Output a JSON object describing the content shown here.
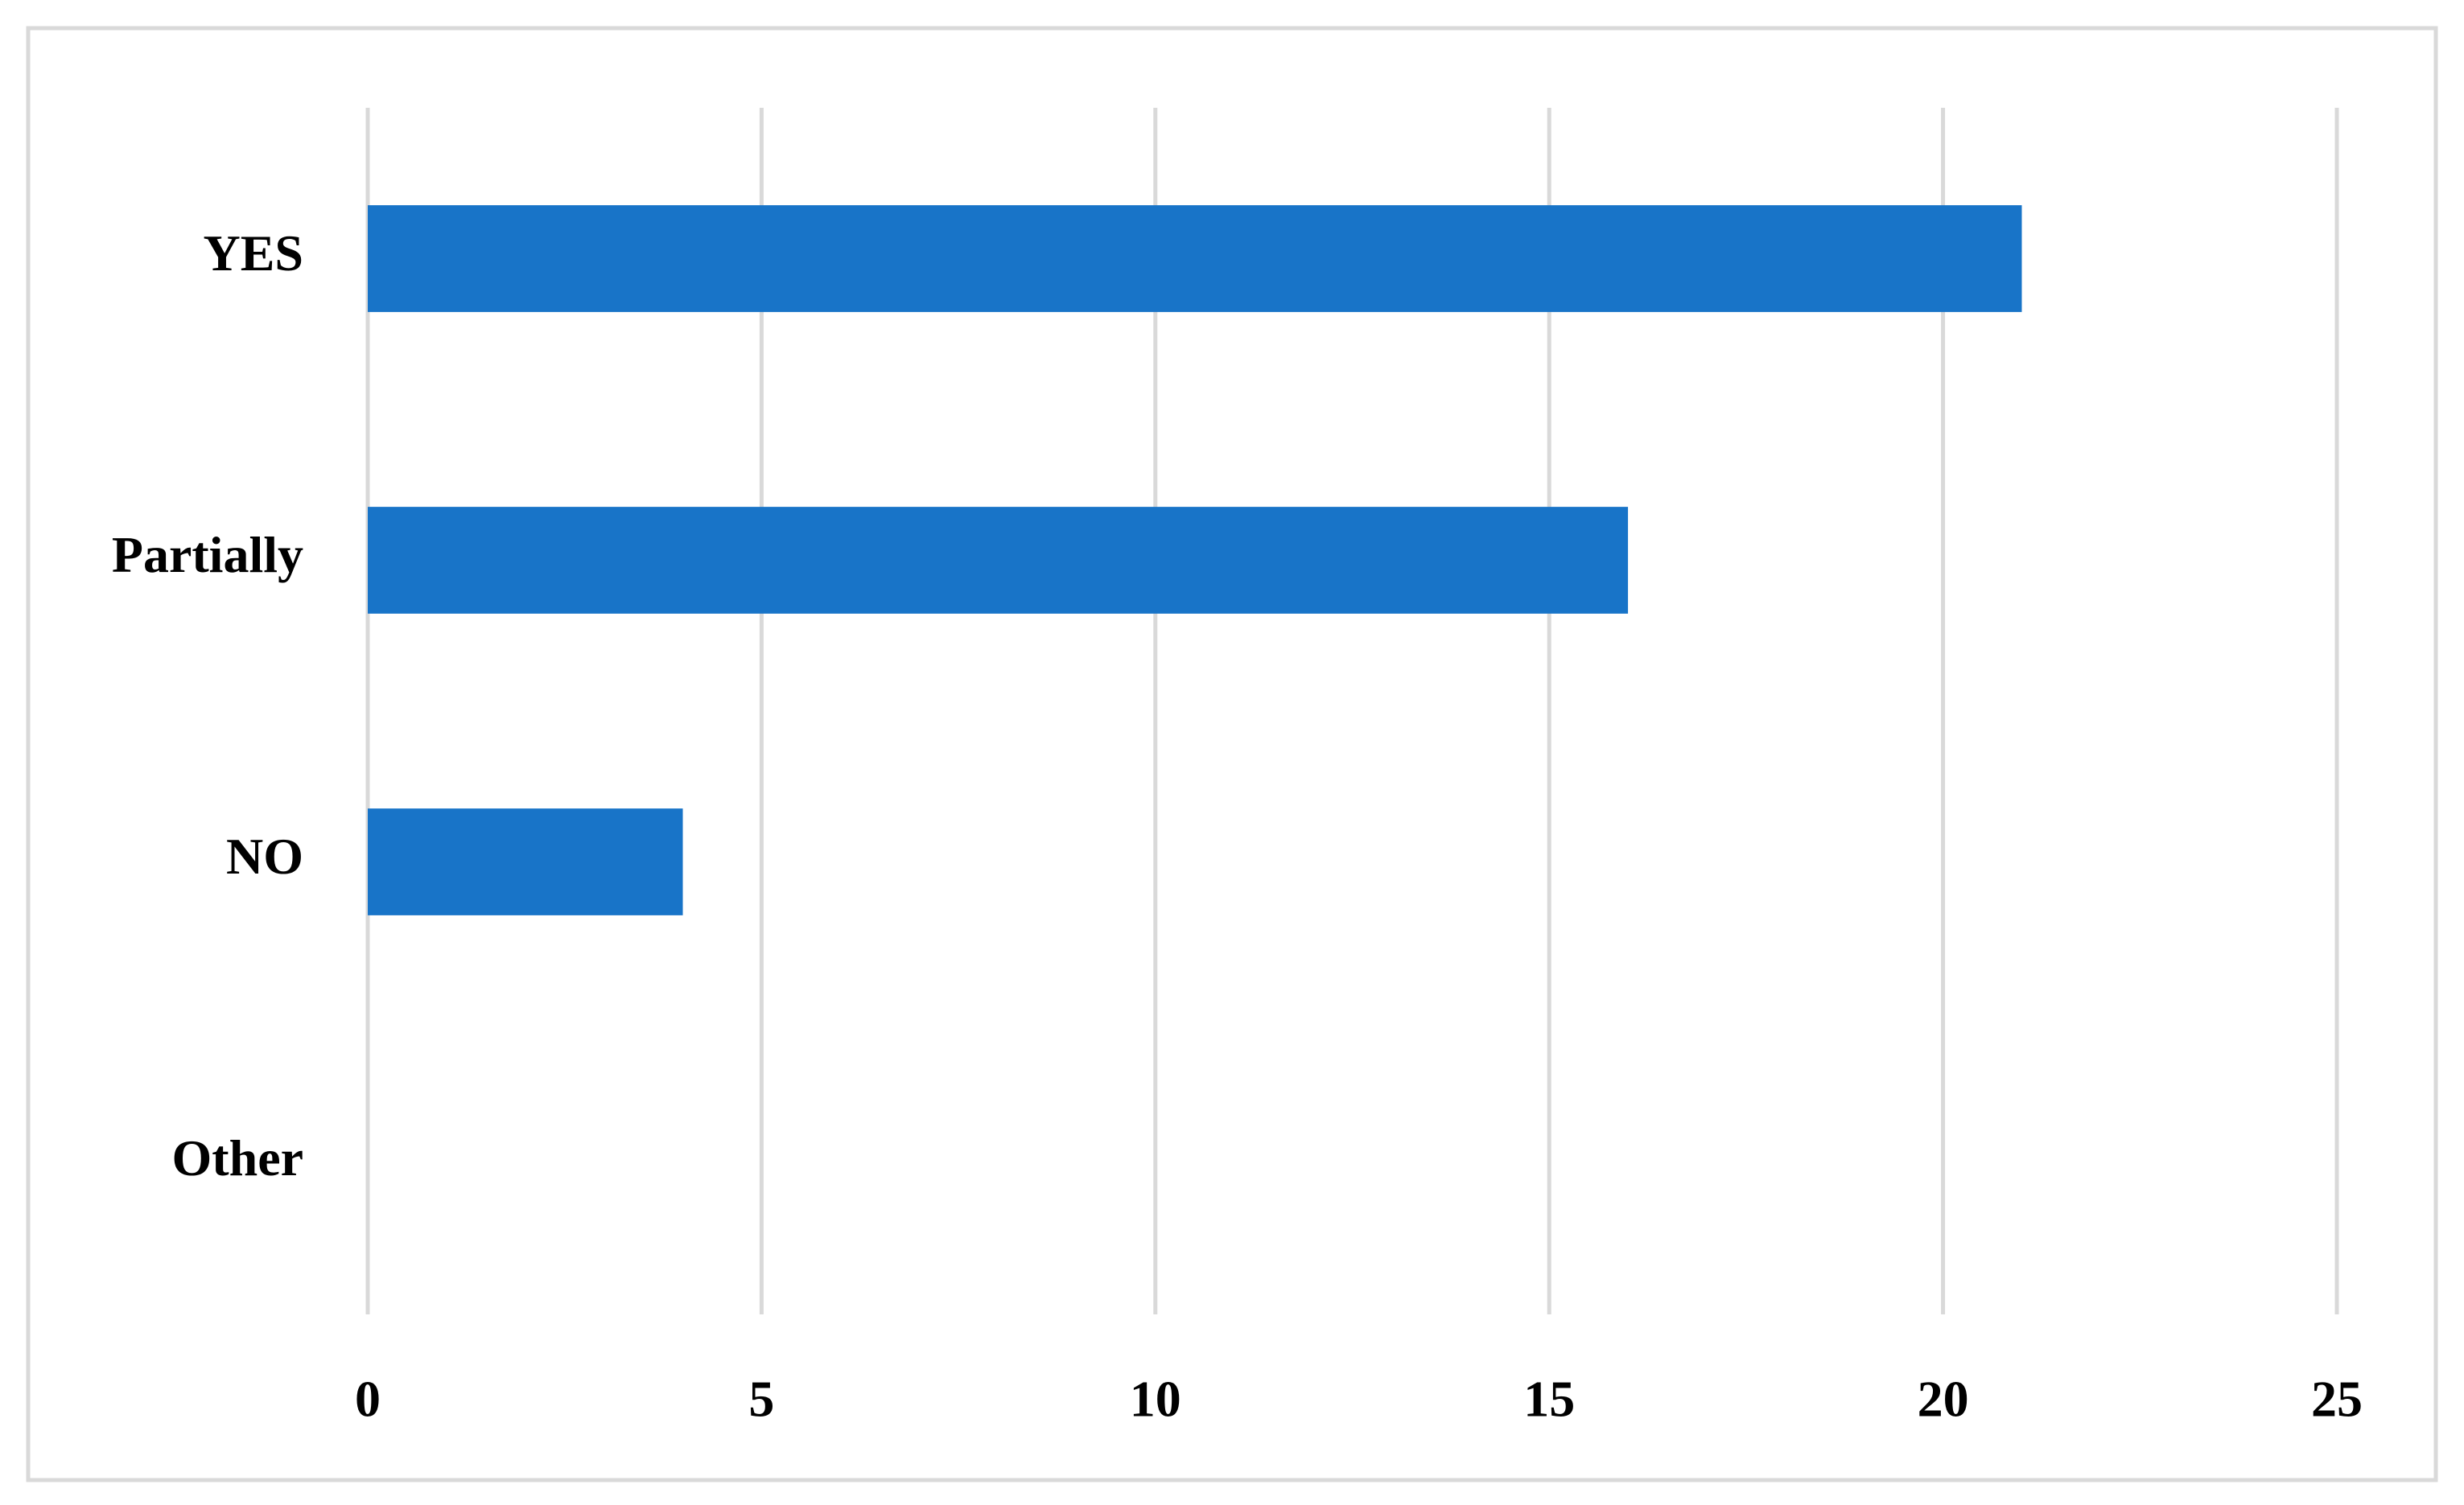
{
  "chart_data": {
    "type": "bar",
    "orientation": "horizontal",
    "categories": [
      "YES",
      "Partially",
      "NO",
      "Other"
    ],
    "values": [
      21,
      16,
      4,
      0
    ],
    "color": "#1874c8",
    "xlim": [
      0,
      25
    ],
    "xticks": [
      0,
      5,
      10,
      15,
      20,
      25
    ],
    "grid": true
  }
}
